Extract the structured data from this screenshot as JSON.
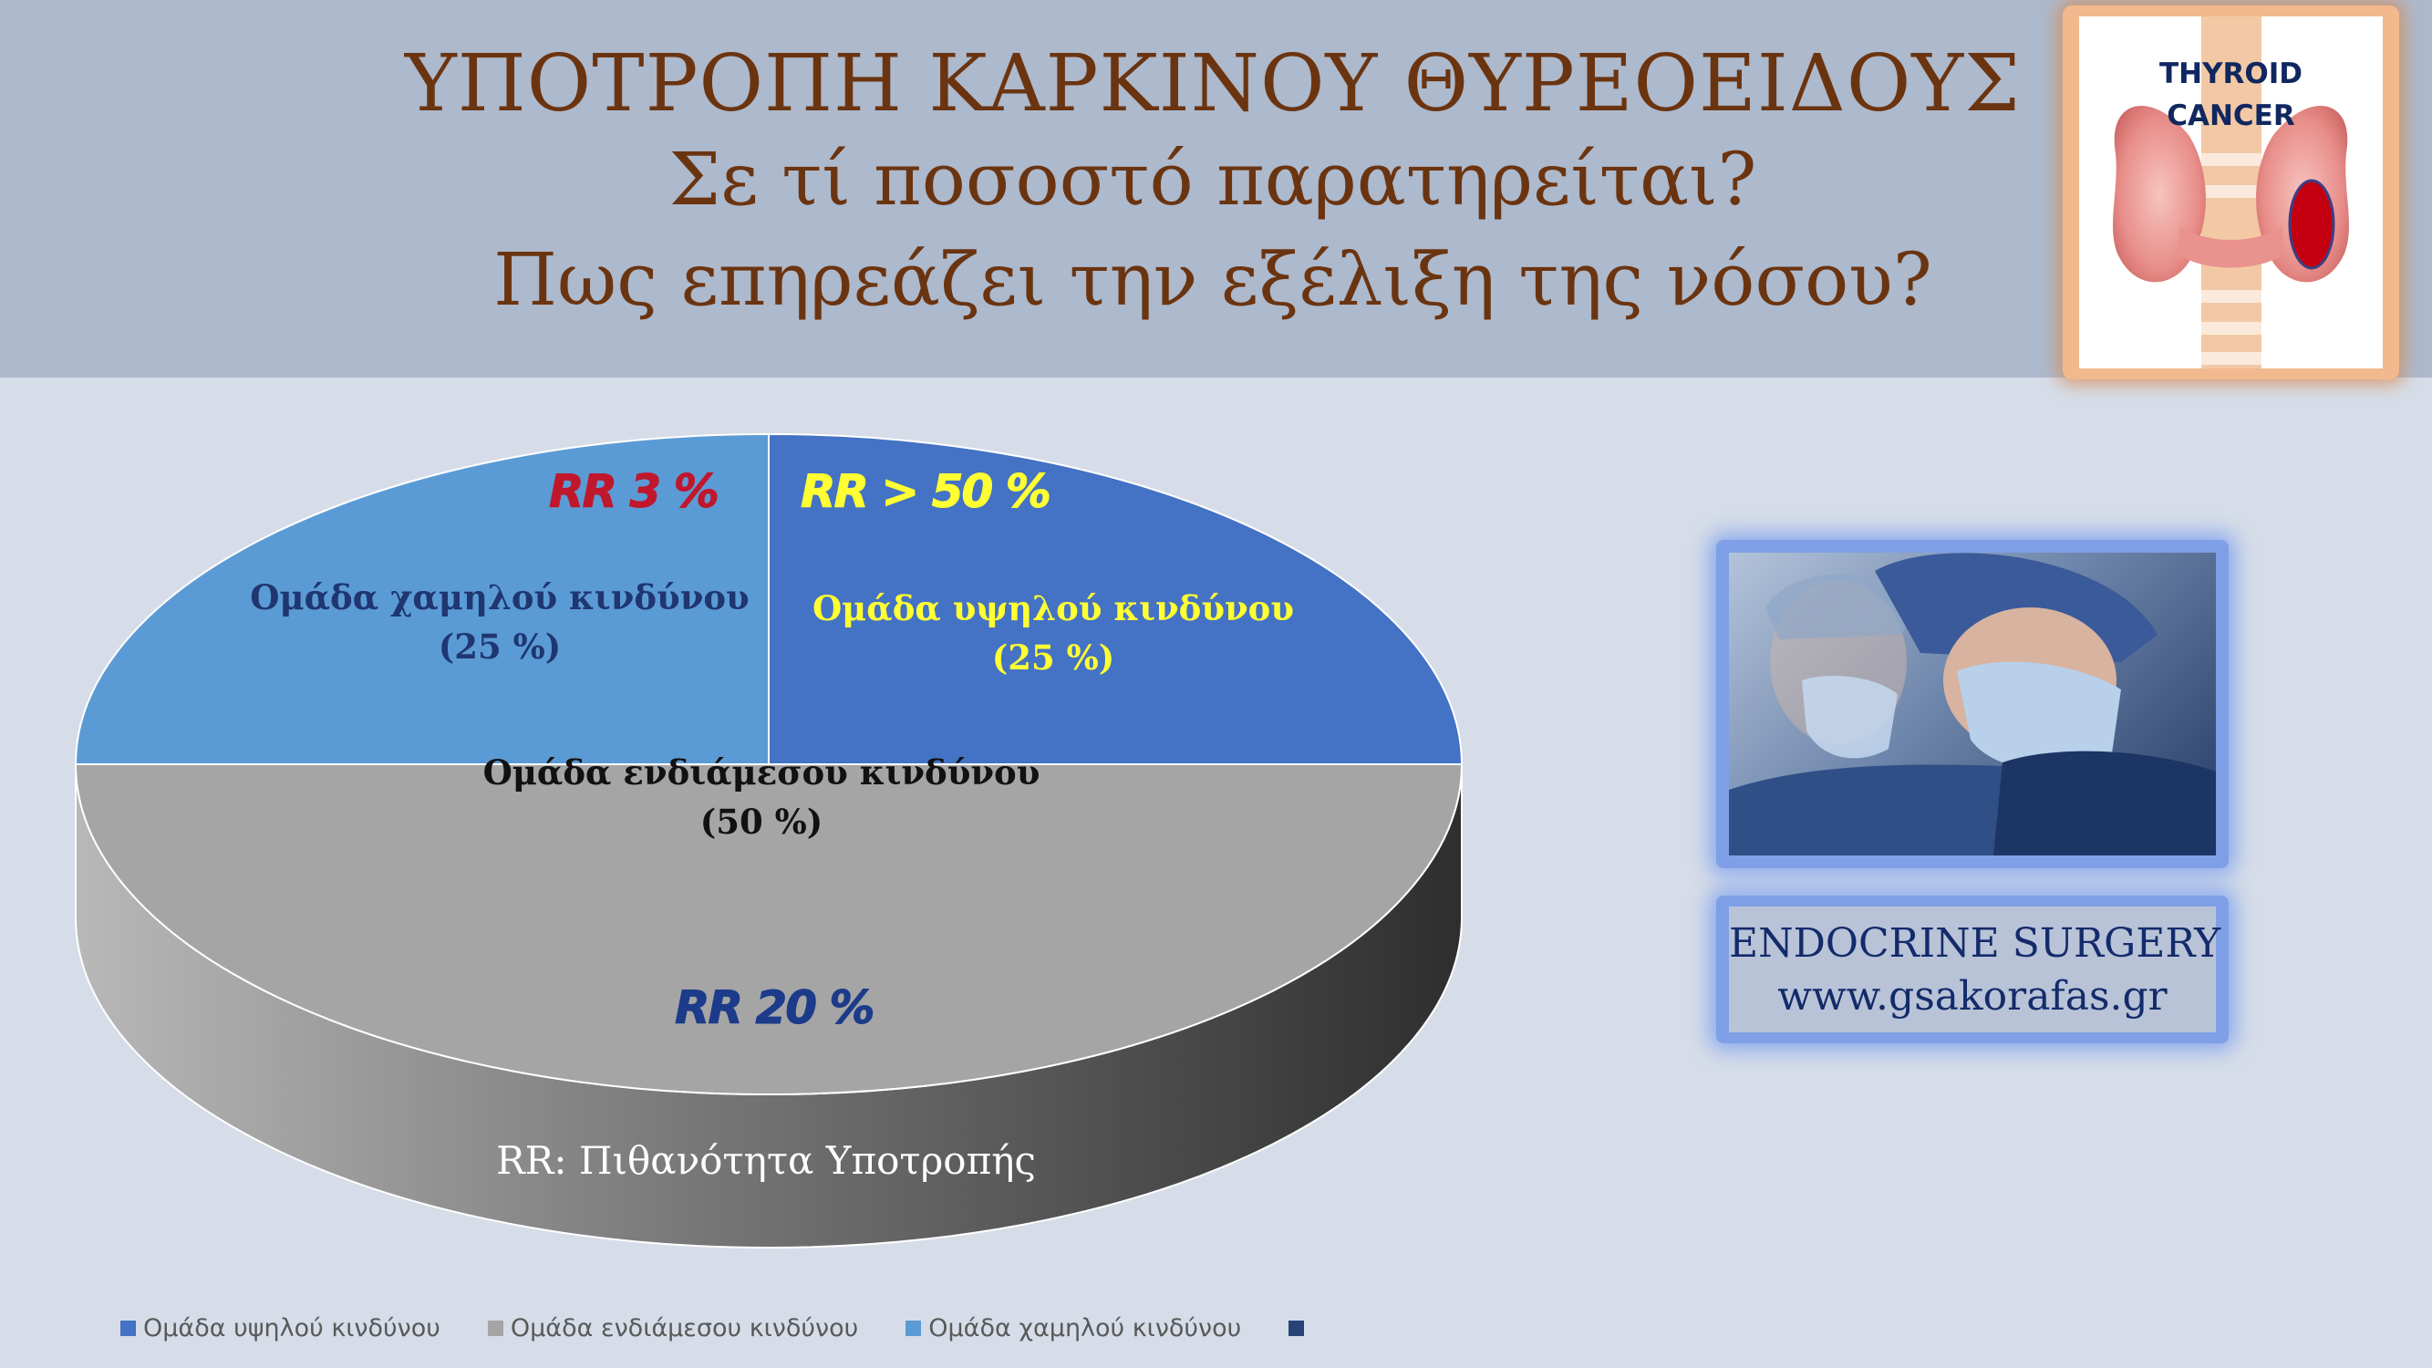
{
  "header": {
    "title_line1": "ΥΠΟΤΡΟΠΗ ΚΑΡΚΙΝΟΥ ΘΥΡΕΟΕΙΔΟΥΣ",
    "title_line2": "Σε τί ποσοστό παρατηρείται?",
    "title_line3": "Πως επηρεάζει την εξέλιξη της νόσου?"
  },
  "logo": {
    "line1": "THYROID",
    "line2": "CANCER",
    "icon": "thyroid-gland-icon"
  },
  "chart_data": {
    "type": "pie",
    "style": "3d",
    "slices": [
      {
        "name": "Ομάδα υψηλού κινδύνου",
        "value": 25,
        "data_label_line1": "Ομάδα υψηλού κινδύνου",
        "data_label_line2": "(25 %)",
        "rr": "RR > 50 %",
        "color": "#4472c4",
        "label_color": "#ffff33"
      },
      {
        "name": "Ομάδα ενδιάμεσου κινδύνου",
        "value": 50,
        "data_label_line1": "Ομάδα ενδιάμεσου κινδύνου",
        "data_label_line2": "(50 %)",
        "rr": "RR 20 %",
        "color": "#a5a5a5",
        "label_color": "#111111"
      },
      {
        "name": "Ομάδα χαμηλού κινδύνου",
        "value": 25,
        "data_label_line1": "Ομάδα χαμηλού κινδύνου",
        "data_label_line2": "(25 %)",
        "rr": "RR 3 %",
        "color": "#5b9bd5",
        "label_color": "#1f3670"
      }
    ],
    "rr_colors": {
      "low": "#c0172d",
      "high": "#ffff33",
      "intermediate": "#1c3b8a"
    },
    "footnote": "RR: Πιθανότητα Υποτροπής",
    "legend": {
      "position": "bottom",
      "items": [
        {
          "label": "Ομάδα υψηλού κινδύνου",
          "color": "#4472c4"
        },
        {
          "label": "Ομάδα ενδιάμεσου κινδύνου",
          "color": "#a5a5a5"
        },
        {
          "label": "Ομάδα χαμηλού κινδύνου",
          "color": "#5b9bd5"
        },
        {
          "label": "",
          "color": "#264478"
        }
      ]
    }
  },
  "photo": {
    "icon": "surgeons-photo"
  },
  "brand": {
    "line1": "ENDOCRINE SURGERY",
    "line2": "www.gsakorafas.gr"
  }
}
